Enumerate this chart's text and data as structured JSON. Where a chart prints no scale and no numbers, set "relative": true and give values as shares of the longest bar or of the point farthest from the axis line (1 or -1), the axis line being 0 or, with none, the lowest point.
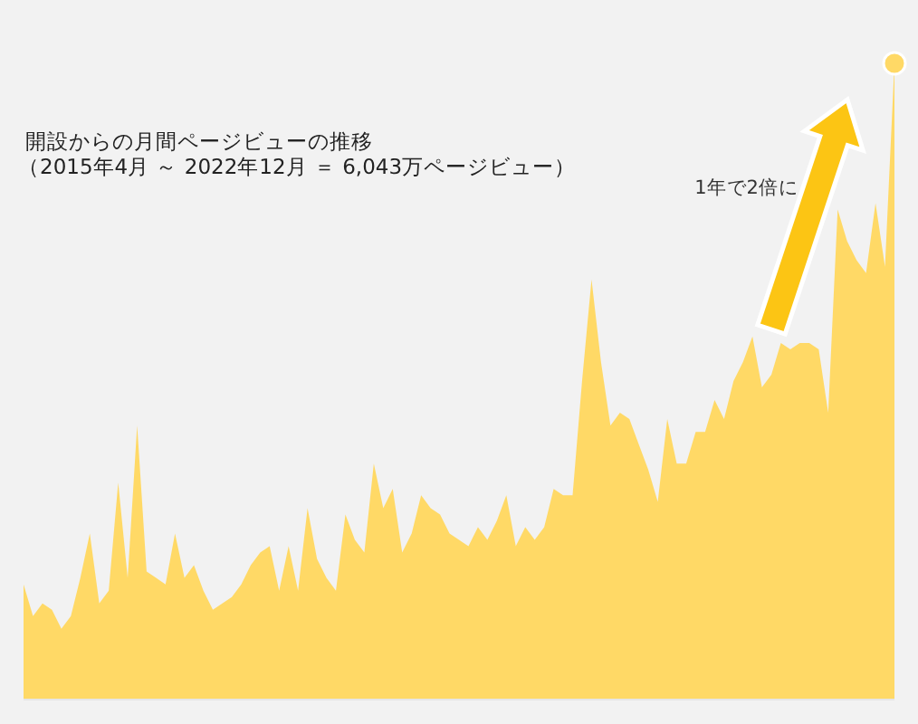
{
  "chart_data": {
    "type": "area",
    "title": "開設からの月間ページビューの推移",
    "subtitle": "（2015年4月 ～ 2022年12月 ＝ 6,043万ページビュー）",
    "annotations": [
      "1年で2倍に"
    ],
    "relative": true,
    "color": "#ffd966",
    "categories": [
      null,
      null,
      null,
      null,
      null,
      null,
      null,
      null,
      null,
      null,
      null,
      null,
      null,
      null,
      null,
      null,
      null,
      null,
      null,
      null,
      null,
      null,
      null,
      null,
      null,
      null,
      null,
      null,
      null,
      null,
      null,
      null,
      null,
      null,
      null,
      null,
      null,
      null,
      null,
      null,
      null,
      null,
      null,
      null,
      null,
      null,
      null,
      null,
      null,
      null,
      null,
      null,
      null,
      null,
      null,
      null,
      null,
      null,
      null,
      null,
      null,
      null,
      null,
      null,
      null,
      null,
      null,
      null,
      null,
      null,
      null,
      null,
      null,
      null,
      null,
      null,
      null,
      null,
      null,
      null,
      null,
      null,
      null,
      null,
      null,
      null,
      null,
      null,
      null,
      null,
      null,
      null,
      null
    ],
    "values": [
      0.18,
      0.13,
      0.15,
      0.14,
      0.11,
      0.13,
      0.19,
      0.26,
      0.15,
      0.17,
      0.34,
      0.19,
      0.43,
      0.2,
      0.19,
      0.18,
      0.26,
      0.19,
      0.21,
      0.17,
      0.14,
      0.15,
      0.16,
      0.18,
      0.21,
      0.23,
      0.24,
      0.17,
      0.24,
      0.17,
      0.3,
      0.22,
      0.19,
      0.17,
      0.29,
      0.25,
      0.23,
      0.37,
      0.3,
      0.33,
      0.23,
      0.26,
      0.32,
      0.3,
      0.29,
      0.26,
      0.25,
      0.24,
      0.27,
      0.25,
      0.28,
      0.32,
      0.24,
      0.27,
      0.25,
      0.27,
      0.33,
      0.32,
      0.32,
      0.5,
      0.66,
      0.53,
      0.43,
      0.45,
      0.44,
      0.4,
      0.36,
      0.31,
      0.44,
      0.37,
      0.37,
      0.42,
      0.42,
      0.47,
      0.44,
      0.5,
      0.53,
      0.57,
      0.49,
      0.51,
      0.56,
      0.55,
      0.56,
      0.56,
      0.55,
      0.45,
      0.77,
      0.72,
      0.69,
      0.67,
      0.78,
      0.68,
      1
    ]
  }
}
